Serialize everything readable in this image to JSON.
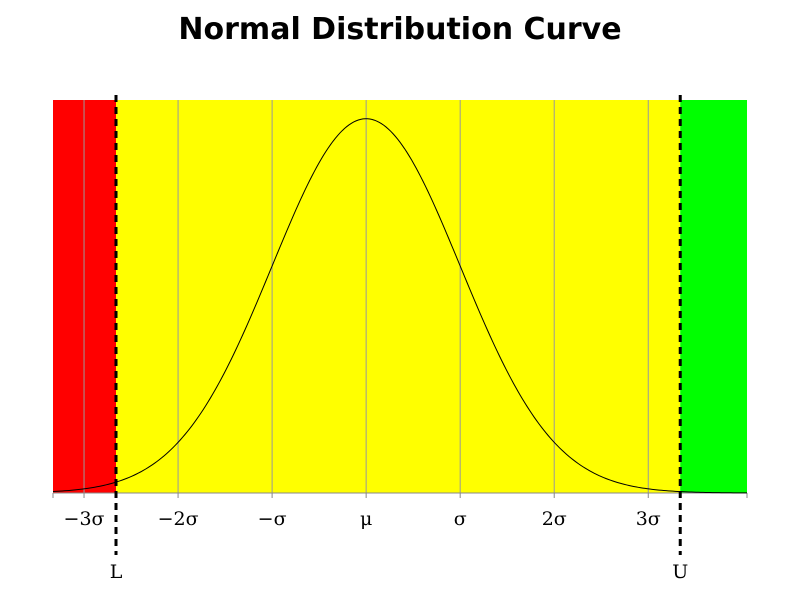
{
  "chart_data": {
    "type": "line",
    "title": "Normal Distribution Curve",
    "xlabel": "",
    "ylabel": "",
    "xlim": [
      -3.33,
      4.05
    ],
    "ylim": [
      0,
      0.4189
    ],
    "grid": true,
    "x_tick_values": [
      -3,
      -2,
      -1,
      0,
      1,
      2,
      3
    ],
    "x_tick_labels": [
      "−3σ",
      "−2σ",
      "−σ",
      "μ",
      "σ",
      "2σ",
      "3σ"
    ],
    "series": [
      {
        "function": "standard normal density",
        "x_range": [
          -3.33,
          4.05
        ],
        "color": "#000000"
      }
    ],
    "limits": [
      {
        "label": "L",
        "x": -2.66
      },
      {
        "label": "U",
        "x": 3.34
      }
    ],
    "regions": [
      {
        "from": -3.33,
        "to": -2.66,
        "color": "#ff0000"
      },
      {
        "from": -2.66,
        "to": 3.34,
        "color": "#ffff00"
      },
      {
        "from": 3.34,
        "to": 4.05,
        "color": "#00ff00"
      }
    ]
  }
}
